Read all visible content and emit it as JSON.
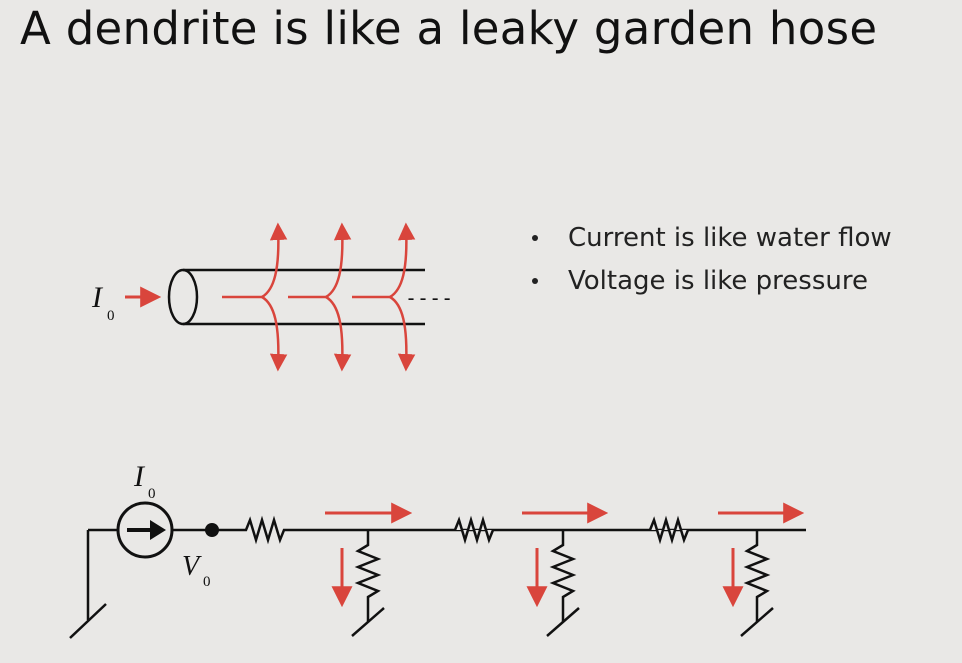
{
  "slide": {
    "title": "A dendrite is like a leaky garden hose",
    "bullets": [
      "Current is like water flow",
      "Voltage is like pressure"
    ]
  },
  "hose_diagram": {
    "input_label": "I",
    "input_subscript": "0",
    "continuation": "----"
  },
  "circuit": {
    "source_label": "I",
    "source_subscript": "0",
    "node_label": "V",
    "node_subscript": "0"
  },
  "colors": {
    "background": "#e9e8e6",
    "arrow_red": "#d9453c",
    "ink": "#111111"
  }
}
